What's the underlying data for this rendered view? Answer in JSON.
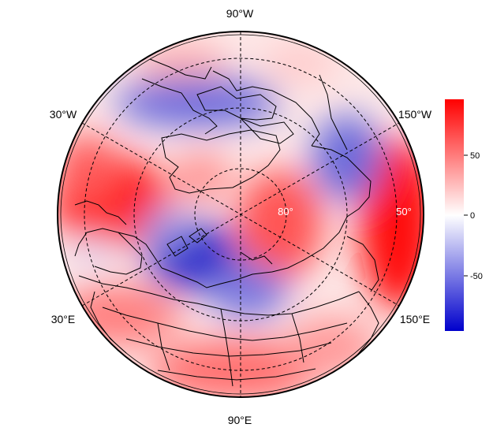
{
  "map": {
    "projection": "north-polar-stereographic",
    "longitude_labels": [
      "90°W",
      "30°W",
      "150°W",
      "30°E",
      "150°E",
      "90°E"
    ],
    "latitude_labels": [
      "80°",
      "50°"
    ],
    "graticule_style": "dashed",
    "colormap": [
      "#0000cc",
      "#ffffff",
      "#ff0000"
    ]
  },
  "colorbar": {
    "ticks": [
      "50",
      "0",
      "-50"
    ],
    "top_color": "#ff0000",
    "middle_color": "#ffffff",
    "bottom_color": "#0000cc"
  }
}
